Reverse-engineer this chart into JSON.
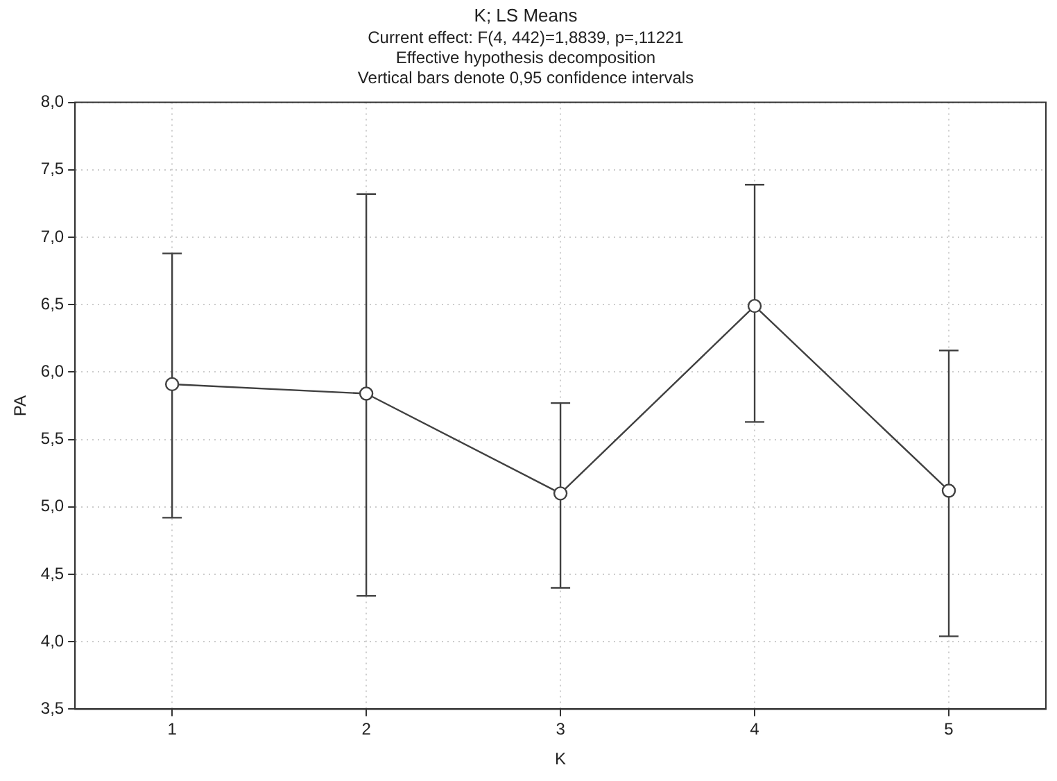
{
  "chart_data": {
    "type": "line",
    "title": "K; LS Means",
    "subtitle": "Current effect: F(4, 442)=1,8839, p=,11221",
    "annotations": [
      "Effective hypothesis decomposition",
      "Vertical bars denote 0,95 confidence intervals"
    ],
    "xlabel": "K",
    "ylabel": "PA",
    "categories": [
      "1",
      "2",
      "3",
      "4",
      "5"
    ],
    "series": [
      {
        "color": "#404040",
        "values": [
          5.91,
          5.84,
          5.1,
          6.49,
          5.12
        ],
        "errors": [
          [
            4.92,
            6.88
          ],
          [
            4.34,
            7.32
          ],
          [
            4.4,
            5.77
          ],
          [
            5.63,
            7.39
          ],
          [
            4.04,
            6.16
          ]
        ]
      }
    ],
    "ylim": [
      3.5,
      8
    ],
    "yticks": [
      {
        "value": 3.5,
        "label": "3,5"
      },
      {
        "value": 4,
        "label": "4,0"
      },
      {
        "value": 4.5,
        "label": "4,5"
      },
      {
        "value": 5,
        "label": "5,0"
      },
      {
        "value": 5.5,
        "label": "5,5"
      },
      {
        "value": 6,
        "label": "6,0"
      },
      {
        "value": 6.5,
        "label": "6,5"
      },
      {
        "value": 7,
        "label": "7,0"
      },
      {
        "value": 7.5,
        "label": "7,5"
      },
      {
        "value": 8,
        "label": "8,0"
      }
    ],
    "grid": true,
    "marker": "circle",
    "line_style": "solid",
    "legend": false
  }
}
